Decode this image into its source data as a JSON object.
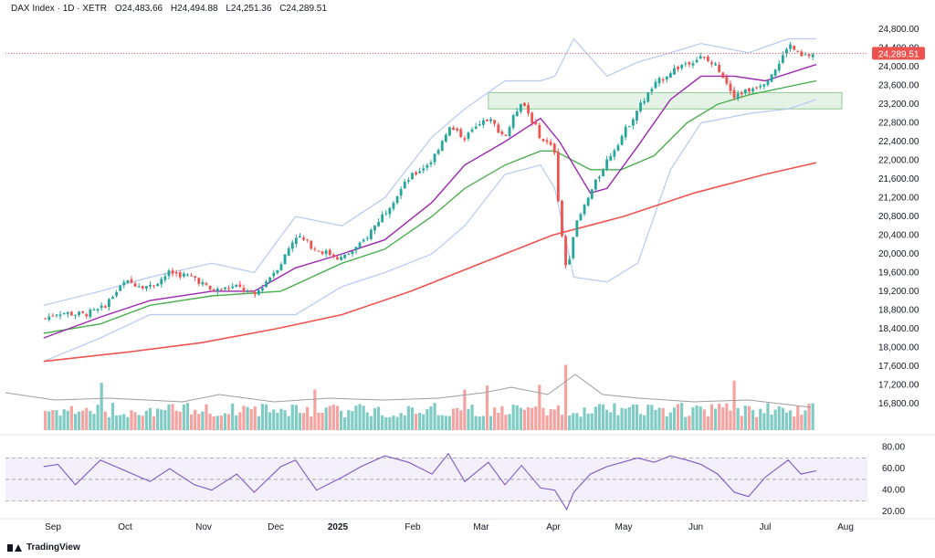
{
  "header": {
    "symbol": "DAX Index · 1D · XETR",
    "open": "O24,483.66",
    "high": "H24,494.88",
    "low": "L24,251.36",
    "close": "C24,289.51"
  },
  "brand": {
    "name": "TradingView"
  },
  "colors": {
    "up": "#26a69a",
    "down": "#ef5350",
    "up_vol": "#80cbc4",
    "down_vol": "#f5a3a0",
    "bb": "#b6c9f2",
    "ma_fast": "#9c27b0",
    "ma_mid": "#4caf50",
    "ma_slow": "#ef5350",
    "rsi": "#7e57c2",
    "rsi_band": "#f3effb",
    "zone": "#e5f3e6",
    "zone_border": "#8fc994"
  },
  "chart_data": [
    {
      "type": "candlestick",
      "title": "DAX Index · 1D · XETR",
      "ylim": [
        16600,
        25000
      ],
      "y_ticks": [
        "24,800.00",
        "24,400.00",
        "24,000.00",
        "23,600.00",
        "23,200.00",
        "22,800.00",
        "22,400.00",
        "22,000.00",
        "21,600.00",
        "21,200.00",
        "20,800.00",
        "20,400.00",
        "20,000.00",
        "19,600.00",
        "19,200.00",
        "18,800.00",
        "18,400.00",
        "18,000.00",
        "17,600.00",
        "17,200.00",
        "16,800.00"
      ],
      "x_ticks": [
        "Sep",
        "Oct",
        "Nov",
        "Dec",
        "2025",
        "Feb",
        "Mar",
        "Apr",
        "May",
        "Jun",
        "Jul",
        "Aug"
      ],
      "last_price_label": "24,289.51",
      "price_path": [
        {
          "t": "Aug 26",
          "close": 18600
        },
        {
          "t": "Sep 3",
          "close": 18750
        },
        {
          "t": "Sep 13",
          "close": 18700
        },
        {
          "t": "Sep 20",
          "close": 18800
        },
        {
          "t": "Sep 30",
          "close": 19400
        },
        {
          "t": "Oct 10",
          "close": 19300
        },
        {
          "t": "Oct 18",
          "close": 19600
        },
        {
          "t": "Oct 28",
          "close": 19500
        },
        {
          "t": "Nov 5",
          "close": 19200
        },
        {
          "t": "Nov 15",
          "close": 19300
        },
        {
          "t": "Nov 22",
          "close": 19100
        },
        {
          "t": "Dec 3",
          "close": 19800
        },
        {
          "t": "Dec 10",
          "close": 20400
        },
        {
          "t": "Dec 20",
          "close": 20100
        },
        {
          "t": "Jan 2",
          "close": 19900
        },
        {
          "t": "Jan 10",
          "close": 20200
        },
        {
          "t": "Jan 20",
          "close": 20900
        },
        {
          "t": "Jan 30",
          "close": 21600
        },
        {
          "t": "Feb 10",
          "close": 22000
        },
        {
          "t": "Feb 17",
          "close": 22700
        },
        {
          "t": "Feb 24",
          "close": 22500
        },
        {
          "t": "Mar 4",
          "close": 22900
        },
        {
          "t": "Mar 11",
          "close": 22500
        },
        {
          "t": "Mar 18",
          "close": 23300
        },
        {
          "t": "Mar 26",
          "close": 22500
        },
        {
          "t": "Apr 2",
          "close": 22200
        },
        {
          "t": "Apr 4",
          "close": 20800
        },
        {
          "t": "Apr 7",
          "close": 19600
        },
        {
          "t": "Apr 10",
          "close": 20500
        },
        {
          "t": "Apr 17",
          "close": 21300
        },
        {
          "t": "Apr 24",
          "close": 22000
        },
        {
          "t": "Apr 30",
          "close": 22500
        },
        {
          "t": "May 7",
          "close": 23100
        },
        {
          "t": "May 14",
          "close": 23600
        },
        {
          "t": "May 21",
          "close": 23900
        },
        {
          "t": "May 28",
          "close": 24100
        },
        {
          "t": "Jun 4",
          "close": 24200
        },
        {
          "t": "Jun 11",
          "close": 24000
        },
        {
          "t": "Jun 18",
          "close": 23400
        },
        {
          "t": "Jun 24",
          "close": 23500
        },
        {
          "t": "Jul 1",
          "close": 23700
        },
        {
          "t": "Jul 7",
          "close": 24100
        },
        {
          "t": "Jul 10",
          "close": 24500
        },
        {
          "t": "Jul 15",
          "close": 24200
        },
        {
          "t": "Jul 21",
          "close": 24289.51
        }
      ],
      "indicators": {
        "ma_fast": [
          {
            "t": "Aug 26",
            "v": 18200
          },
          {
            "t": "Sep 20",
            "v": 18650
          },
          {
            "t": "Oct 10",
            "v": 19000
          },
          {
            "t": "Nov 5",
            "v": 19200
          },
          {
            "t": "Nov 22",
            "v": 19200
          },
          {
            "t": "Dec 10",
            "v": 19700
          },
          {
            "t": "Jan 2",
            "v": 20000
          },
          {
            "t": "Jan 20",
            "v": 20300
          },
          {
            "t": "Feb 10",
            "v": 21100
          },
          {
            "t": "Feb 24",
            "v": 21900
          },
          {
            "t": "Mar 11",
            "v": 22400
          },
          {
            "t": "Mar 26",
            "v": 22900
          },
          {
            "t": "Apr 4",
            "v": 22400
          },
          {
            "t": "Apr 17",
            "v": 21300
          },
          {
            "t": "Apr 24",
            "v": 21400
          },
          {
            "t": "May 7",
            "v": 22300
          },
          {
            "t": "May 21",
            "v": 23300
          },
          {
            "t": "Jun 4",
            "v": 23800
          },
          {
            "t": "Jun 18",
            "v": 23800
          },
          {
            "t": "Jul 1",
            "v": 23700
          },
          {
            "t": "Jul 21",
            "v": 24050
          }
        ],
        "ma_mid": [
          {
            "t": "Aug 26",
            "v": 18300
          },
          {
            "t": "Sep 20",
            "v": 18500
          },
          {
            "t": "Oct 10",
            "v": 18900
          },
          {
            "t": "Nov 5",
            "v": 19100
          },
          {
            "t": "Dec 3",
            "v": 19200
          },
          {
            "t": "Jan 2",
            "v": 19800
          },
          {
            "t": "Jan 20",
            "v": 20100
          },
          {
            "t": "Feb 10",
            "v": 20800
          },
          {
            "t": "Feb 24",
            "v": 21400
          },
          {
            "t": "Mar 11",
            "v": 21900
          },
          {
            "t": "Mar 26",
            "v": 22200
          },
          {
            "t": "Apr 2",
            "v": 22200
          },
          {
            "t": "Apr 17",
            "v": 21800
          },
          {
            "t": "Apr 30",
            "v": 21800
          },
          {
            "t": "May 14",
            "v": 22100
          },
          {
            "t": "May 28",
            "v": 22800
          },
          {
            "t": "Jun 11",
            "v": 23200
          },
          {
            "t": "Jun 24",
            "v": 23400
          },
          {
            "t": "Jul 21",
            "v": 23700
          }
        ],
        "ma_slow": [
          {
            "t": "Aug 26",
            "v": 17700
          },
          {
            "t": "Oct 1",
            "v": 17900
          },
          {
            "t": "Nov 1",
            "v": 18100
          },
          {
            "t": "Dec 1",
            "v": 18400
          },
          {
            "t": "Jan 2",
            "v": 18700
          },
          {
            "t": "Feb 1",
            "v": 19200
          },
          {
            "t": "Mar 1",
            "v": 19800
          },
          {
            "t": "Apr 1",
            "v": 20400
          },
          {
            "t": "May 1",
            "v": 20800
          },
          {
            "t": "Jun 1",
            "v": 21300
          },
          {
            "t": "Jul 1",
            "v": 21700
          },
          {
            "t": "Jul 21",
            "v": 21950
          }
        ],
        "bb_upper": [
          {
            "t": "Aug 26",
            "v": 18900
          },
          {
            "t": "Sep 20",
            "v": 19200
          },
          {
            "t": "Oct 10",
            "v": 19500
          },
          {
            "t": "Nov 5",
            "v": 19800
          },
          {
            "t": "Nov 22",
            "v": 19600
          },
          {
            "t": "Dec 10",
            "v": 20800
          },
          {
            "t": "Jan 2",
            "v": 20600
          },
          {
            "t": "Jan 20",
            "v": 21200
          },
          {
            "t": "Feb 10",
            "v": 22500
          },
          {
            "t": "Feb 24",
            "v": 23100
          },
          {
            "t": "Mar 11",
            "v": 23700
          },
          {
            "t": "Mar 26",
            "v": 23700
          },
          {
            "t": "Apr 2",
            "v": 23800
          },
          {
            "t": "Apr 10",
            "v": 24600
          },
          {
            "t": "Apr 24",
            "v": 23800
          },
          {
            "t": "May 7",
            "v": 24100
          },
          {
            "t": "May 21",
            "v": 24300
          },
          {
            "t": "Jun 4",
            "v": 24500
          },
          {
            "t": "Jun 24",
            "v": 24300
          },
          {
            "t": "Jul 10",
            "v": 24600
          },
          {
            "t": "Jul 21",
            "v": 24600
          }
        ],
        "bb_lower": [
          {
            "t": "Aug 26",
            "v": 17700
          },
          {
            "t": "Sep 20",
            "v": 18200
          },
          {
            "t": "Oct 10",
            "v": 18700
          },
          {
            "t": "Nov 5",
            "v": 18700
          },
          {
            "t": "Nov 22",
            "v": 18700
          },
          {
            "t": "Dec 10",
            "v": 18700
          },
          {
            "t": "Jan 2",
            "v": 19300
          },
          {
            "t": "Jan 20",
            "v": 19600
          },
          {
            "t": "Feb 10",
            "v": 20000
          },
          {
            "t": "Feb 24",
            "v": 20600
          },
          {
            "t": "Mar 11",
            "v": 21700
          },
          {
            "t": "Mar 26",
            "v": 21900
          },
          {
            "t": "Apr 2",
            "v": 21400
          },
          {
            "t": "Apr 10",
            "v": 19500
          },
          {
            "t": "Apr 24",
            "v": 19400
          },
          {
            "t": "May 7",
            "v": 19800
          },
          {
            "t": "May 21",
            "v": 21800
          },
          {
            "t": "Jun 4",
            "v": 22800
          },
          {
            "t": "Jun 24",
            "v": 23000
          },
          {
            "t": "Jul 10",
            "v": 23100
          },
          {
            "t": "Jul 21",
            "v": 23300
          }
        ]
      },
      "zone": {
        "from": "Mar 4",
        "to": "Jul 31",
        "y_low": 23100,
        "y_high": 23450
      },
      "volume": {
        "pattern": "gradual mostly moderate bars with spikes",
        "spikes": [
          {
            "t": "Sep 20",
            "v": 2.2
          },
          {
            "t": "Dec 20",
            "v": 2.0
          },
          {
            "t": "Feb 24",
            "v": 1.8
          },
          {
            "t": "Mar 4",
            "v": 2.0
          },
          {
            "t": "Mar 26",
            "v": 2.1
          },
          {
            "t": "Apr 7",
            "v": 3.0
          },
          {
            "t": "Jun 18",
            "v": 2.4
          }
        ]
      }
    },
    {
      "type": "line",
      "ylabel": "",
      "ylim": [
        15,
        90
      ],
      "y_ticks": [
        "80.00",
        "60.00",
        "40.00",
        "20.00"
      ],
      "bands": {
        "upper": 70,
        "middle": 50,
        "lower": 30
      },
      "series": [
        {
          "values": [
            {
              "t": "Aug 26",
              "v": 62
            },
            {
              "t": "Sep 3",
              "v": 64
            },
            {
              "t": "Sep 10",
              "v": 45
            },
            {
              "t": "Sep 20",
              "v": 68
            },
            {
              "t": "Sep 30",
              "v": 58
            },
            {
              "t": "Oct 10",
              "v": 48
            },
            {
              "t": "Oct 18",
              "v": 60
            },
            {
              "t": "Oct 28",
              "v": 45
            },
            {
              "t": "Nov 5",
              "v": 40
            },
            {
              "t": "Nov 15",
              "v": 55
            },
            {
              "t": "Nov 22",
              "v": 38
            },
            {
              "t": "Dec 3",
              "v": 62
            },
            {
              "t": "Dec 10",
              "v": 68
            },
            {
              "t": "Dec 20",
              "v": 40
            },
            {
              "t": "Jan 2",
              "v": 52
            },
            {
              "t": "Jan 10",
              "v": 62
            },
            {
              "t": "Jan 20",
              "v": 72
            },
            {
              "t": "Jan 30",
              "v": 66
            },
            {
              "t": "Feb 10",
              "v": 55
            },
            {
              "t": "Feb 17",
              "v": 74
            },
            {
              "t": "Feb 24",
              "v": 48
            },
            {
              "t": "Mar 4",
              "v": 66
            },
            {
              "t": "Mar 11",
              "v": 45
            },
            {
              "t": "Mar 18",
              "v": 63
            },
            {
              "t": "Mar 26",
              "v": 42
            },
            {
              "t": "Apr 2",
              "v": 40
            },
            {
              "t": "Apr 7",
              "v": 22
            },
            {
              "t": "Apr 10",
              "v": 38
            },
            {
              "t": "Apr 17",
              "v": 55
            },
            {
              "t": "Apr 24",
              "v": 62
            },
            {
              "t": "May 7",
              "v": 70
            },
            {
              "t": "May 14",
              "v": 66
            },
            {
              "t": "May 21",
              "v": 72
            },
            {
              "t": "May 28",
              "v": 68
            },
            {
              "t": "Jun 4",
              "v": 64
            },
            {
              "t": "Jun 11",
              "v": 55
            },
            {
              "t": "Jun 18",
              "v": 38
            },
            {
              "t": "Jun 24",
              "v": 34
            },
            {
              "t": "Jul 1",
              "v": 52
            },
            {
              "t": "Jul 10",
              "v": 68
            },
            {
              "t": "Jul 15",
              "v": 55
            },
            {
              "t": "Jul 21",
              "v": 58
            }
          ]
        }
      ]
    }
  ]
}
